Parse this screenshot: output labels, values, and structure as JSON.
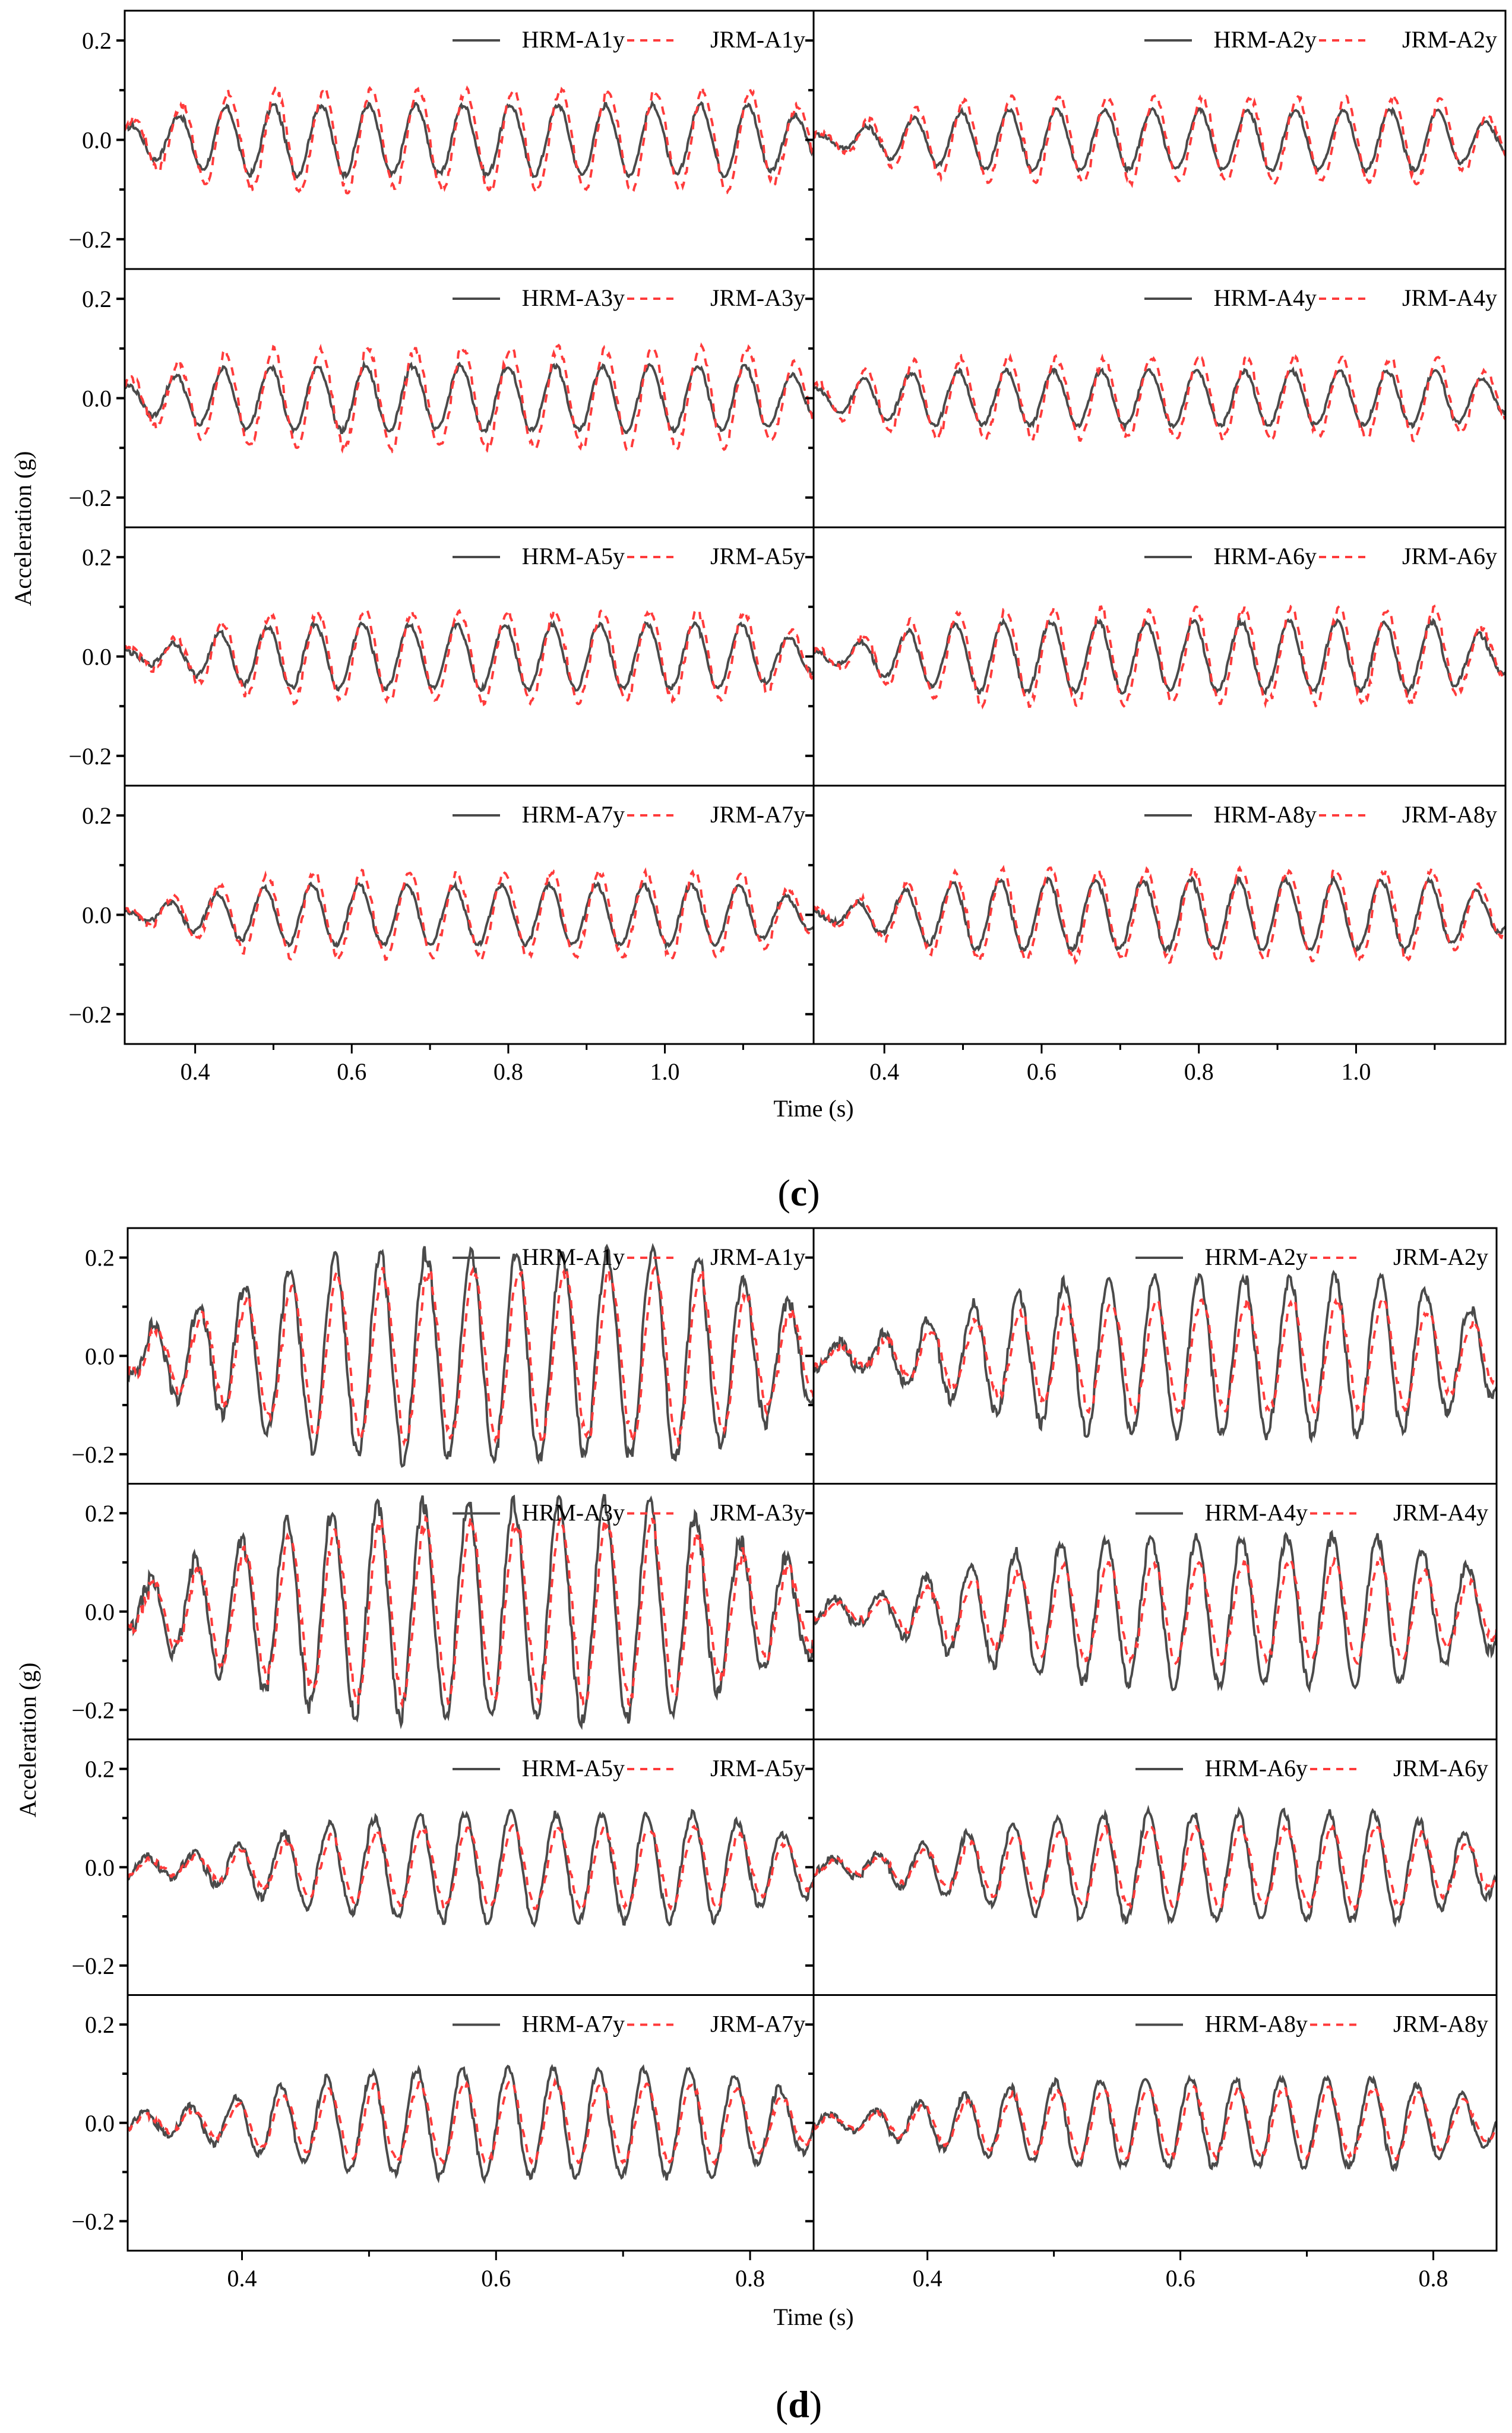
{
  "colors": {
    "hrm": "#4a4a4a",
    "jrm": "#ff3b3b",
    "axis": "#000000"
  },
  "legend": {
    "solid_name_prefix": "HRM-",
    "dashed_name_prefix": "JRM-"
  },
  "chart_data": [
    {
      "type": "line",
      "panel": "(c)",
      "panel_letter": "c",
      "xlabel": "Time (s)",
      "ylabel": "Acceleration (g)",
      "xlim": [
        0.31,
        1.19
      ],
      "ylim": [
        -0.26,
        0.26
      ],
      "xticks": [
        0.4,
        0.6,
        0.8,
        1.0
      ],
      "xtick_labels": [
        "0.4",
        "0.6",
        "0.8",
        "1.0"
      ],
      "yticks": [
        -0.2,
        0.0,
        0.2
      ],
      "ytick_labels": [
        "−0.2",
        "0.0",
        "0.2"
      ],
      "grid": false,
      "legend_position": "upper right",
      "freq_hz": 16.5,
      "subplots": [
        {
          "id": "A1y",
          "series": [
            {
              "name": "HRM-A1y",
              "style": "solid",
              "peak": 0.07,
              "onset": 0.5,
              "end": 1.12
            },
            {
              "name": "JRM-A1y",
              "style": "dashed",
              "peak": 0.1,
              "onset": 0.5,
              "end": 1.12
            }
          ]
        },
        {
          "id": "A2y",
          "series": [
            {
              "name": "HRM-A2y",
              "style": "solid",
              "peak": 0.06,
              "onset": 0.55,
              "end": 1.1
            },
            {
              "name": "JRM-A2y",
              "style": "dashed",
              "peak": 0.085,
              "onset": 0.55,
              "end": 1.1
            }
          ]
        },
        {
          "id": "A3y",
          "series": [
            {
              "name": "HRM-A3y",
              "style": "solid",
              "peak": 0.065,
              "onset": 0.5,
              "end": 1.12
            },
            {
              "name": "JRM-A3y",
              "style": "dashed",
              "peak": 0.1,
              "onset": 0.5,
              "end": 1.12
            }
          ]
        },
        {
          "id": "A4y",
          "series": [
            {
              "name": "HRM-A4y",
              "style": "solid",
              "peak": 0.055,
              "onset": 0.5,
              "end": 1.12
            },
            {
              "name": "JRM-A4y",
              "style": "dashed",
              "peak": 0.08,
              "onset": 0.5,
              "end": 1.12
            }
          ]
        },
        {
          "id": "A5y",
          "series": [
            {
              "name": "HRM-A5y",
              "style": "solid",
              "peak": 0.065,
              "onset": 0.55,
              "end": 1.1
            },
            {
              "name": "JRM-A5y",
              "style": "dashed",
              "peak": 0.09,
              "onset": 0.55,
              "end": 1.1
            }
          ]
        },
        {
          "id": "A6y",
          "series": [
            {
              "name": "HRM-A6y",
              "style": "solid",
              "peak": 0.07,
              "onset": 0.55,
              "end": 1.1
            },
            {
              "name": "JRM-A6y",
              "style": "dashed",
              "peak": 0.095,
              "onset": 0.55,
              "end": 1.1
            }
          ]
        },
        {
          "id": "A7y",
          "series": [
            {
              "name": "HRM-A7y",
              "style": "solid",
              "peak": 0.06,
              "onset": 0.55,
              "end": 1.1
            },
            {
              "name": "JRM-A7y",
              "style": "dashed",
              "peak": 0.085,
              "onset": 0.55,
              "end": 1.1
            }
          ]
        },
        {
          "id": "A8y",
          "series": [
            {
              "name": "HRM-A8y",
              "style": "solid",
              "peak": 0.07,
              "onset": 0.55,
              "end": 1.1
            },
            {
              "name": "JRM-A8y",
              "style": "dashed",
              "peak": 0.09,
              "onset": 0.55,
              "end": 1.1
            }
          ]
        }
      ]
    },
    {
      "type": "line",
      "panel": "(d)",
      "panel_letter": "d",
      "xlabel": "Time (s)",
      "ylabel": "Acceleration (g)",
      "xlim": [
        0.31,
        0.85
      ],
      "ylim": [
        -0.26,
        0.26
      ],
      "xticks": [
        0.4,
        0.6,
        0.8
      ],
      "xtick_labels": [
        "0.4",
        "0.6",
        "0.8"
      ],
      "yticks": [
        -0.2,
        0.0,
        0.2
      ],
      "ytick_labels": [
        "−0.2",
        "0.0",
        "0.2"
      ],
      "grid": false,
      "legend_position": "upper right",
      "freq_hz": 28,
      "subplots": [
        {
          "id": "A1y",
          "series": [
            {
              "name": "HRM-A1y",
              "style": "solid",
              "peak": 0.21,
              "onset": 0.53,
              "end": 0.76
            },
            {
              "name": "JRM-A1y",
              "style": "dashed",
              "peak": 0.17,
              "onset": 0.53,
              "end": 0.76
            }
          ]
        },
        {
          "id": "A2y",
          "series": [
            {
              "name": "HRM-A2y",
              "style": "solid",
              "peak": 0.16,
              "onset": 0.57,
              "end": 0.77
            },
            {
              "name": "JRM-A2y",
              "style": "dashed",
              "peak": 0.11,
              "onset": 0.57,
              "end": 0.77
            }
          ]
        },
        {
          "id": "A3y",
          "series": [
            {
              "name": "HRM-A3y",
              "style": "solid",
              "peak": 0.22,
              "onset": 0.53,
              "end": 0.74
            },
            {
              "name": "JRM-A3y",
              "style": "dashed",
              "peak": 0.18,
              "onset": 0.53,
              "end": 0.74
            }
          ]
        },
        {
          "id": "A4y",
          "series": [
            {
              "name": "HRM-A4y",
              "style": "solid",
              "peak": 0.15,
              "onset": 0.57,
              "end": 0.77
            },
            {
              "name": "JRM-A4y",
              "style": "dashed",
              "peak": 0.1,
              "onset": 0.57,
              "end": 0.77
            }
          ]
        },
        {
          "id": "A5y",
          "series": [
            {
              "name": "HRM-A5y",
              "style": "solid",
              "peak": 0.11,
              "onset": 0.57,
              "end": 0.77
            },
            {
              "name": "JRM-A5y",
              "style": "dashed",
              "peak": 0.08,
              "onset": 0.57,
              "end": 0.77
            }
          ]
        },
        {
          "id": "A6y",
          "series": [
            {
              "name": "HRM-A6y",
              "style": "solid",
              "peak": 0.11,
              "onset": 0.57,
              "end": 0.77
            },
            {
              "name": "JRM-A6y",
              "style": "dashed",
              "peak": 0.08,
              "onset": 0.57,
              "end": 0.77
            }
          ]
        },
        {
          "id": "A7y",
          "series": [
            {
              "name": "HRM-A7y",
              "style": "solid",
              "peak": 0.11,
              "onset": 0.56,
              "end": 0.77
            },
            {
              "name": "JRM-A7y",
              "style": "dashed",
              "peak": 0.08,
              "onset": 0.56,
              "end": 0.77
            }
          ]
        },
        {
          "id": "A8y",
          "series": [
            {
              "name": "HRM-A8y",
              "style": "solid",
              "peak": 0.09,
              "onset": 0.56,
              "end": 0.77
            },
            {
              "name": "JRM-A8y",
              "style": "dashed",
              "peak": 0.07,
              "onset": 0.56,
              "end": 0.77
            }
          ]
        }
      ]
    }
  ]
}
